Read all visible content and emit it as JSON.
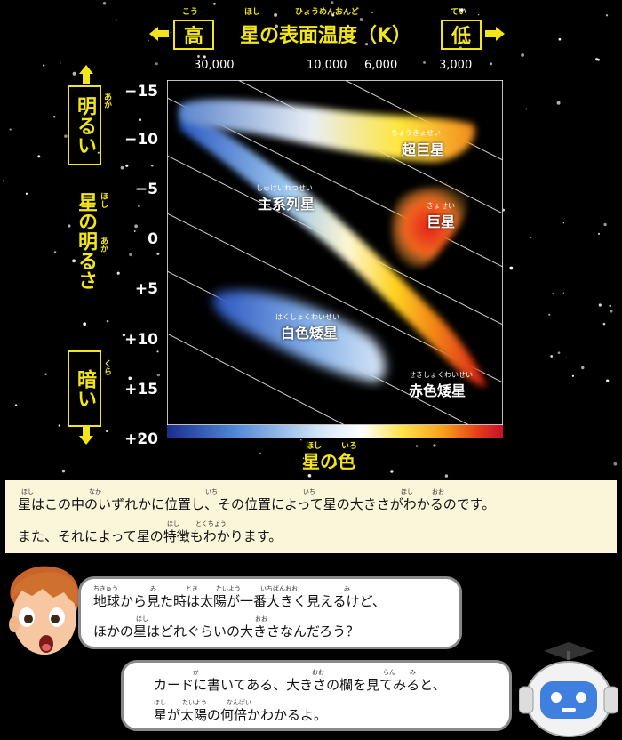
{
  "header": {
    "left_label": "高",
    "left_ruby": "こう",
    "right_label": "低",
    "right_ruby": "てい",
    "title": "星の表面温度（K）",
    "title_ruby_hoshi": "ほし",
    "title_ruby_rest": "ひょうめんおんど"
  },
  "x_ticks": [
    "30,000",
    "10,000",
    "6,000",
    "3,000"
  ],
  "y_ticks": [
    "−15",
    "−10",
    "−5",
    "0",
    "+5",
    "+10",
    "+15",
    "+20"
  ],
  "y_axis": {
    "bright_label": "明るい",
    "bright_ruby": "あか",
    "middle_label": "星の明るさ",
    "middle_ruby_hoshi": "ほし",
    "middle_ruby_aka": "あか",
    "dark_label": "暗い",
    "dark_ruby": "くら"
  },
  "regions": {
    "supergiant": {
      "label": "超巨星",
      "ruby": "ちょうきょせい"
    },
    "main_sequence": {
      "label": "主系列星",
      "ruby": "しゅけいれつせい"
    },
    "giant": {
      "label": "巨星",
      "ruby": "きょせい"
    },
    "white_dwarf": {
      "label": "白色矮星",
      "ruby": "はくしょくわいせい"
    },
    "red_dwarf": {
      "label": "赤色矮星",
      "ruby": "せきしょくわいせい"
    }
  },
  "x_axis_title": "星の色",
  "x_axis_title_ruby": [
    "ほし",
    "いろ"
  ],
  "info": {
    "line1": "星はこの中のいずれかに位置し、その位置によって星の大きさがわかるのです。",
    "line2": "また、それによって星の特徴もわかります。",
    "ruby1": [
      "ほし",
      "なか",
      "いち",
      "いち",
      "ほし",
      "おお"
    ],
    "ruby2": [
      "ほし",
      "とくちょう"
    ]
  },
  "boy_bubble": {
    "line1": "地球から見た時は太陽が一番大きく見えるけど、",
    "line2": "ほかの星はどれぐらいの大きさなんだろう？",
    "ruby1": [
      "ちきゅう",
      "み",
      "とき",
      "たいよう",
      "いちばんおお",
      "み"
    ],
    "ruby2": [
      "ほし",
      "おお"
    ]
  },
  "robot_bubble": {
    "line1": "カードに書いてある、大きさの欄を見てみると、",
    "line2": "星が太陽の何倍かわかるよ。",
    "ruby1": [
      "か",
      "おお",
      "らん",
      "み"
    ],
    "ruby2": [
      "ほし",
      "たいよう",
      "なんばい"
    ]
  },
  "colors": {
    "accent": "#f2e51a",
    "info_bg": "#fbf6da",
    "colorbar": [
      "#1a2d8c",
      "#4f86d6",
      "#cfe4f7",
      "#ffffff",
      "#ffe24a",
      "#f6a21b",
      "#e33a1a",
      "#c8102e"
    ]
  }
}
